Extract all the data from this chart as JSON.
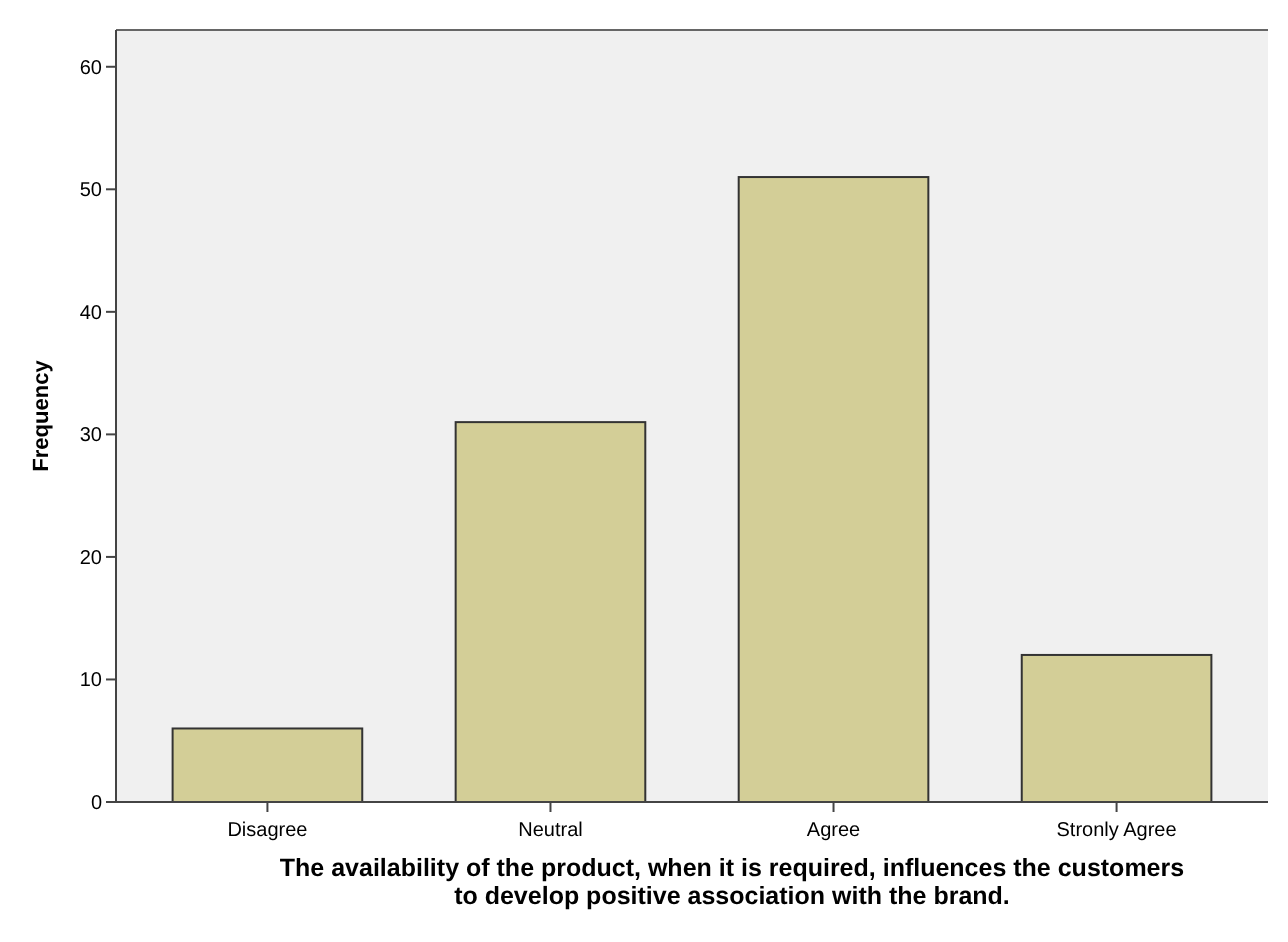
{
  "chart_data": {
    "type": "bar",
    "xlabel": "The availability of the product, when it is required, influences the customers\nto develop positive association with the brand.",
    "ylabel": "Frequency",
    "categories": [
      "Disagree",
      "Neutral",
      "Agree",
      "Stronly Agree"
    ],
    "values": [
      6,
      31,
      51,
      12
    ],
    "color": "#d3ce97",
    "ylim": [
      0,
      63
    ],
    "yticks": [
      0,
      10,
      20,
      30,
      40,
      50,
      60
    ],
    "grid": false
  }
}
